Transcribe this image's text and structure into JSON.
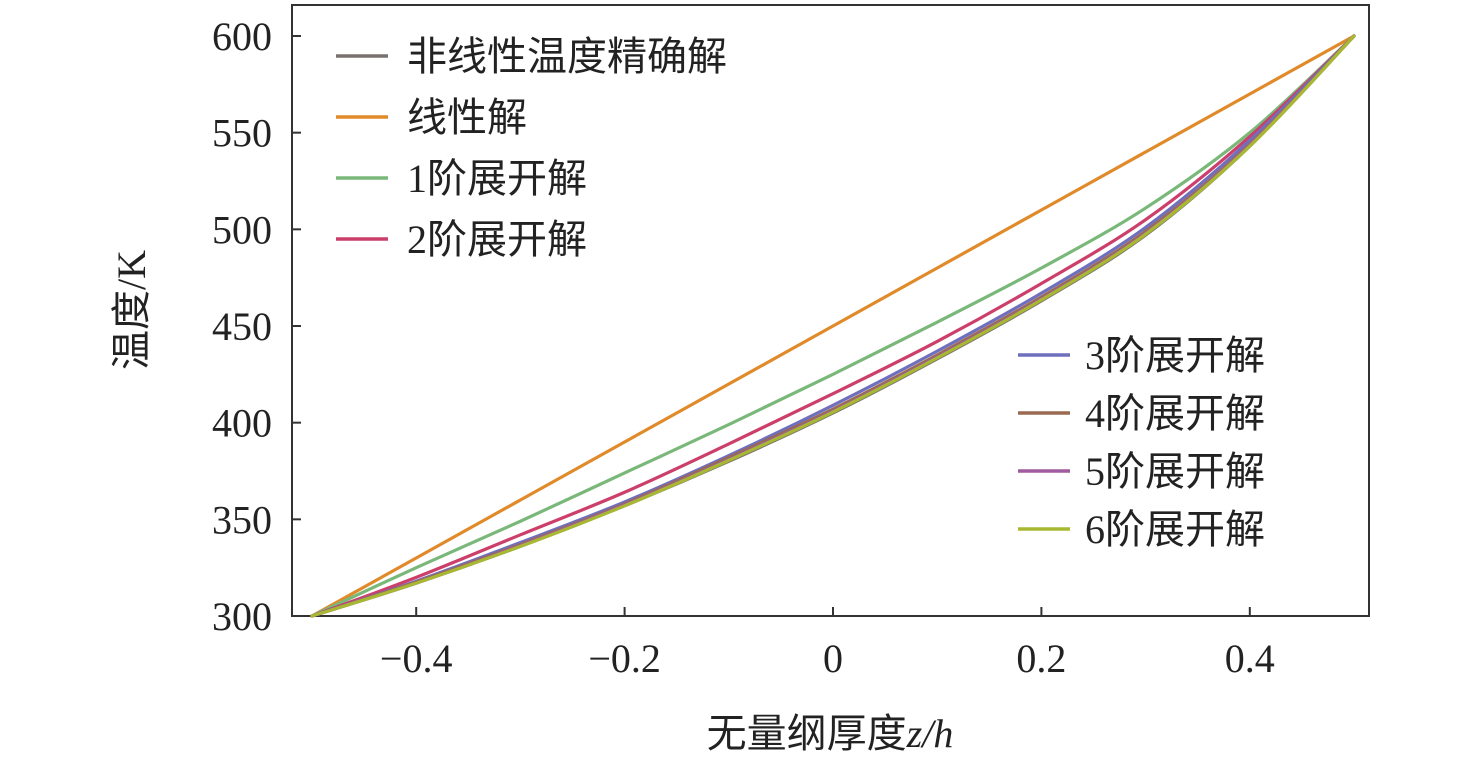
{
  "chart_data": {
    "type": "line",
    "xlabel": "无量纲厚度",
    "xlabel_var": "z/h",
    "ylabel": "温度/K",
    "xlim": [
      -0.5,
      0.5
    ],
    "ylim": [
      300,
      600
    ],
    "x_ticks": [
      -0.4,
      -0.2,
      0,
      0.2,
      0.4
    ],
    "x_tick_labels": [
      "−0.4",
      "−0.2",
      "0",
      "0.2",
      "0.4"
    ],
    "y_ticks": [
      300,
      350,
      400,
      450,
      500,
      550,
      600
    ],
    "y_tick_labels": [
      "300",
      "350",
      "400",
      "450",
      "500",
      "550",
      "600"
    ],
    "grid": false,
    "legend_groups": [
      {
        "placement": "top-left",
        "series_indices": [
          0,
          1,
          2,
          3
        ]
      },
      {
        "placement": "right",
        "series_indices": [
          4,
          5,
          6,
          7
        ]
      }
    ],
    "x": [
      -0.5,
      -0.4,
      -0.3,
      -0.2,
      -0.1,
      0,
      0.1,
      0.2,
      0.3,
      0.4,
      0.5
    ],
    "series": [
      {
        "name": "非线性温度精确解",
        "color": "#7a7070",
        "values": [
          300,
          317,
          336,
          357,
          380,
          405,
          433,
          463,
          497,
          543,
          600
        ]
      },
      {
        "name": "线性解",
        "color": "#e08a2a",
        "values": [
          300,
          330,
          360,
          390,
          420,
          450,
          480,
          510,
          540,
          570,
          600
        ]
      },
      {
        "name": "1阶展开解",
        "color": "#7ab87a",
        "values": [
          300,
          325,
          349,
          374,
          399,
          425,
          452,
          480,
          511,
          550,
          600
        ]
      },
      {
        "name": "2阶展开解",
        "color": "#cc3f6a",
        "values": [
          300,
          320,
          342,
          364,
          389,
          415,
          442,
          472,
          505,
          548,
          600
        ]
      },
      {
        "name": "3阶展开解",
        "color": "#6f6fbe",
        "values": [
          300,
          318,
          338,
          359,
          383,
          409,
          437,
          467,
          501,
          546,
          600
        ]
      },
      {
        "name": "4阶展开解",
        "color": "#9a6a50",
        "values": [
          300,
          317.5,
          337,
          358,
          382,
          407,
          435,
          465,
          499,
          544,
          600
        ]
      },
      {
        "name": "5阶展开解",
        "color": "#a05ca0",
        "values": [
          300,
          317,
          336.5,
          357.5,
          381,
          406,
          434,
          464,
          498,
          543.5,
          600
        ]
      },
      {
        "name": "6阶展开解",
        "color": "#a8b830",
        "values": [
          300,
          317,
          336,
          357,
          380.5,
          405.5,
          433.5,
          463.5,
          497.5,
          543,
          600
        ]
      }
    ]
  }
}
